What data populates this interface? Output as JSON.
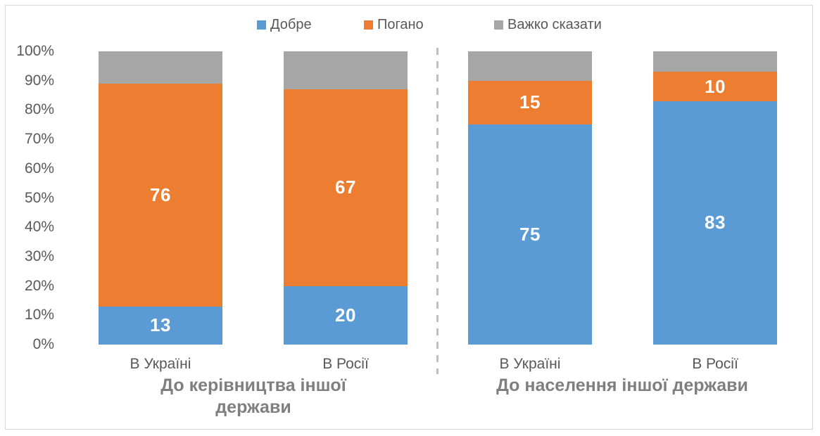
{
  "colors": {
    "good_blue": "#5B9BD5",
    "bad_orange": "#ED7D31",
    "hard_gray": "#A6A6A6",
    "axis_text": "#595959",
    "title_text": "#7F7F7F",
    "divider": "#BFBFBF",
    "frame_border": "#D7D7D7",
    "data_label": "#FFFFFF"
  },
  "legend": {
    "items": [
      {
        "label": "Добре",
        "color": "#5B9BD5"
      },
      {
        "label": "Погано",
        "color": "#ED7D31"
      },
      {
        "label": "Важко сказати",
        "color": "#A6A6A6"
      }
    ]
  },
  "chart_data": {
    "type": "bar",
    "stacked": true,
    "units": "percent",
    "ylim": [
      0,
      100
    ],
    "ytick_labels": [
      "0%",
      "10%",
      "20%",
      "30%",
      "40%",
      "50%",
      "60%",
      "70%",
      "80%",
      "90%",
      "100%"
    ],
    "grid": false,
    "legend_position": "top",
    "series_names": [
      "Добре",
      "Погано",
      "Важко сказати"
    ],
    "groups": [
      {
        "title": "До керівництва іншої держави",
        "categories": [
          "В Україні",
          "В Росії"
        ],
        "series": [
          {
            "name": "Добре",
            "color": "#5B9BD5",
            "values": [
              13,
              20
            ],
            "labels": [
              "13",
              "20"
            ]
          },
          {
            "name": "Погано",
            "color": "#ED7D31",
            "values": [
              76,
              67
            ],
            "labels": [
              "76",
              "67"
            ]
          },
          {
            "name": "Важко сказати",
            "color": "#A6A6A6",
            "values": [
              11,
              13
            ],
            "labels": [
              "",
              ""
            ]
          }
        ]
      },
      {
        "title": "До населення іншої держави",
        "categories": [
          "В Україні",
          "В Росії"
        ],
        "series": [
          {
            "name": "Добре",
            "color": "#5B9BD5",
            "values": [
              75,
              83
            ],
            "labels": [
              "75",
              "83"
            ]
          },
          {
            "name": "Погано",
            "color": "#ED7D31",
            "values": [
              15,
              10
            ],
            "labels": [
              "15",
              "10"
            ]
          },
          {
            "name": "Важко сказати",
            "color": "#A6A6A6",
            "values": [
              10,
              7
            ],
            "labels": [
              "",
              ""
            ]
          }
        ]
      }
    ]
  }
}
